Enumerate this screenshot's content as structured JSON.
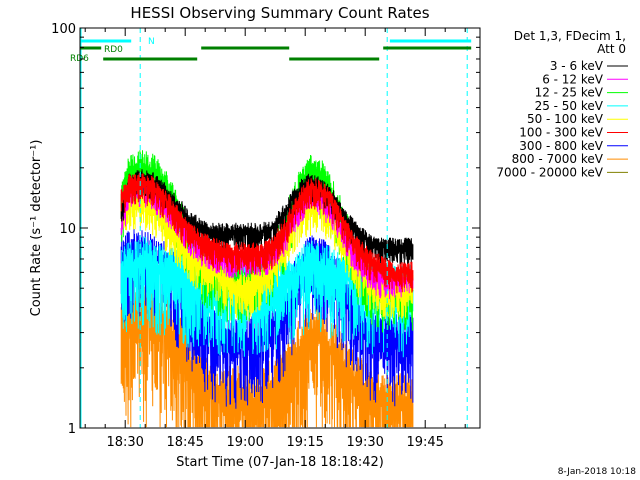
{
  "chart_data": {
    "type": "line",
    "title": "HESSI Observing Summary Count Rates",
    "xlabel": "Start Time (07-Jan-18 18:18:42)",
    "ylabel": "Count Rate (s⁻¹ detector⁻¹)",
    "yscale": "log",
    "ylim": [
      1,
      100
    ],
    "xlim": [
      "18:18:42",
      "19:58:42"
    ],
    "x_ticks": [
      "18:30",
      "18:45",
      "19:00",
      "19:15",
      "19:30",
      "19:45"
    ],
    "y_ticks": [
      "1",
      "10",
      "100"
    ],
    "legend_header": [
      "Det 1,3, FDecim 1,",
      "Att 0"
    ],
    "legend_position": "right",
    "series": [
      {
        "name": "3 - 6 keV",
        "color": "#000000",
        "x": [
          "18:29",
          "18:31",
          "18:34",
          "18:37",
          "18:40",
          "18:43",
          "18:46",
          "18:49",
          "18:52",
          "18:55",
          "18:58",
          "19:01",
          "19:04",
          "19:07",
          "19:10",
          "19:13",
          "19:16",
          "19:19",
          "19:22",
          "19:25",
          "19:28",
          "19:31",
          "19:34",
          "19:37",
          "19:40",
          "19:42"
        ],
        "y": [
          12,
          17,
          18,
          17,
          15,
          13,
          11,
          10,
          9.5,
          9.5,
          9.5,
          9.5,
          9.5,
          10,
          12,
          15,
          17,
          16,
          14,
          11,
          9.5,
          8.5,
          8,
          8,
          8,
          8
        ]
      },
      {
        "name": "6 - 12 keV",
        "color": "#ff00ff",
        "x": [
          "18:29",
          "18:31",
          "18:34",
          "18:37",
          "18:40",
          "18:43",
          "18:46",
          "18:49",
          "18:52",
          "18:55",
          "18:58",
          "19:01",
          "19:04",
          "19:07",
          "19:10",
          "19:13",
          "19:16",
          "19:19",
          "19:22",
          "19:25",
          "19:28",
          "19:31",
          "19:34",
          "19:37",
          "19:40",
          "19:42"
        ],
        "y": [
          10,
          15,
          16,
          15,
          13,
          11,
          9,
          8,
          7.5,
          7,
          7,
          7,
          7,
          7.5,
          9,
          12,
          15,
          14,
          12,
          9,
          7,
          6,
          5.5,
          5.5,
          5.5,
          5.5
        ]
      },
      {
        "name": "12 - 25 keV",
        "color": "#00ff00",
        "x": [
          "18:29",
          "18:31",
          "18:34",
          "18:37",
          "18:40",
          "18:43",
          "18:46",
          "18:49",
          "18:52",
          "18:55",
          "18:58",
          "19:01",
          "19:04",
          "19:07",
          "19:10",
          "19:13",
          "19:16",
          "19:19",
          "19:22",
          "19:25",
          "19:28",
          "19:31",
          "19:34",
          "19:37",
          "19:40",
          "19:42"
        ],
        "y": [
          13,
          19,
          20,
          19,
          16,
          12,
          9,
          7,
          6,
          5.5,
          5.5,
          5.5,
          6,
          7,
          10,
          15,
          19,
          18,
          14,
          10,
          7,
          5.5,
          5,
          5,
          5,
          5
        ]
      },
      {
        "name": "25 - 50 keV",
        "color": "#00ffff",
        "x": [
          "18:29",
          "18:31",
          "18:34",
          "18:37",
          "18:40",
          "18:43",
          "18:46",
          "18:49",
          "18:52",
          "18:55",
          "18:58",
          "19:01",
          "19:04",
          "19:07",
          "19:10",
          "19:13",
          "19:16",
          "19:19",
          "19:22",
          "19:25",
          "19:28",
          "19:31",
          "19:34",
          "19:37",
          "19:40",
          "19:42"
        ],
        "y": [
          6,
          6.5,
          7,
          6.5,
          6,
          6,
          5.5,
          5.5,
          5,
          5,
          5,
          5,
          5,
          5.5,
          5.5,
          6,
          6.5,
          6.5,
          6,
          5.5,
          5.5,
          5,
          5,
          5,
          5,
          5
        ]
      },
      {
        "name": "50 - 100 keV",
        "color": "#ffff00",
        "x": [
          "18:29",
          "18:31",
          "18:34",
          "18:37",
          "18:40",
          "18:43",
          "18:46",
          "18:49",
          "18:52",
          "18:55",
          "18:58",
          "19:01",
          "19:04",
          "19:07",
          "19:10",
          "19:13",
          "19:16",
          "19:19",
          "19:22",
          "19:25",
          "19:28",
          "19:31",
          "19:34",
          "19:37",
          "19:40",
          "19:42"
        ],
        "y": [
          11,
          13,
          14,
          13,
          11,
          9,
          7.5,
          6.5,
          6,
          5.5,
          5,
          5,
          5.5,
          6.5,
          8.5,
          11,
          13,
          13,
          11,
          8.5,
          6.5,
          5.5,
          5,
          5,
          5,
          5
        ]
      },
      {
        "name": "100 - 300 keV",
        "color": "#ff0000",
        "x": [
          "18:29",
          "18:31",
          "18:34",
          "18:37",
          "18:40",
          "18:43",
          "18:46",
          "18:49",
          "18:52",
          "18:55",
          "18:58",
          "19:01",
          "19:04",
          "19:07",
          "19:10",
          "19:13",
          "19:16",
          "19:19",
          "19:22",
          "19:25",
          "19:28",
          "19:31",
          "19:34",
          "19:37",
          "19:40",
          "19:42"
        ],
        "y": [
          14,
          16.5,
          17,
          16,
          14,
          11.5,
          9.5,
          8.5,
          8,
          7.5,
          7.5,
          7.5,
          7.5,
          8,
          10,
          13,
          16,
          15.5,
          13,
          10,
          8,
          7,
          6.5,
          6,
          6,
          6
        ]
      },
      {
        "name": "300 - 800 keV",
        "color": "#0000ff",
        "x": [
          "18:29",
          "18:31",
          "18:34",
          "18:37",
          "18:40",
          "18:43",
          "18:46",
          "18:49",
          "18:52",
          "18:55",
          "18:58",
          "19:01",
          "19:04",
          "19:07",
          "19:10",
          "19:13",
          "19:16",
          "19:19",
          "19:22",
          "19:25",
          "19:28",
          "19:31",
          "19:34",
          "19:37",
          "19:40",
          "19:42"
        ],
        "y": [
          7,
          7.5,
          7.5,
          7,
          6.5,
          5.5,
          4.5,
          3.5,
          3,
          2.8,
          2.7,
          2.7,
          2.8,
          3.2,
          4,
          5.5,
          7,
          7,
          6,
          4.5,
          3.5,
          3,
          2.8,
          2.8,
          2.8,
          2.8
        ]
      },
      {
        "name": "800 - 7000 keV",
        "color": "#ff8c00",
        "x": [
          "18:29",
          "18:31",
          "18:34",
          "18:37",
          "18:40",
          "18:43",
          "18:46",
          "18:49",
          "18:52",
          "18:55",
          "18:58",
          "19:01",
          "19:04",
          "19:07",
          "19:10",
          "19:13",
          "19:16",
          "19:19",
          "19:22",
          "19:25",
          "19:28",
          "19:31",
          "19:34",
          "19:37",
          "19:40",
          "19:42"
        ],
        "y": [
          3.5,
          4,
          4,
          3.5,
          3.2,
          2.6,
          2,
          1.7,
          1.5,
          1.4,
          1.4,
          1.4,
          1.4,
          1.5,
          1.8,
          2.3,
          2.8,
          2.8,
          2.4,
          1.9,
          1.6,
          1.4,
          1.3,
          1.3,
          1.3,
          1.3
        ]
      },
      {
        "name": "7000 - 20000 keV",
        "color": "#808000",
        "x": [],
        "y": []
      }
    ],
    "flag_bars": [
      {
        "name": "N",
        "color": "#00ffff",
        "segments": [
          [
            "18:18:42",
            "18:31:30"
          ],
          [
            "19:36:10",
            "19:56:30"
          ]
        ]
      },
      {
        "name": "RD0",
        "color": "#008000",
        "segments": [
          [
            "18:18:42",
            "18:24:00"
          ],
          [
            "18:49:00",
            "19:11:00"
          ],
          [
            "19:34:30",
            "19:56:30"
          ]
        ]
      },
      {
        "name": "RD6",
        "color": "#008000",
        "segments": [
          [
            "18:24:30",
            "18:48:00"
          ],
          [
            "19:11:00",
            "19:33:30"
          ]
        ]
      }
    ],
    "vlines": [
      "18:33:45",
      "19:35:30",
      "19:55:30"
    ],
    "grid": false
  },
  "timestamp": "8-Jan-2018 10:18"
}
